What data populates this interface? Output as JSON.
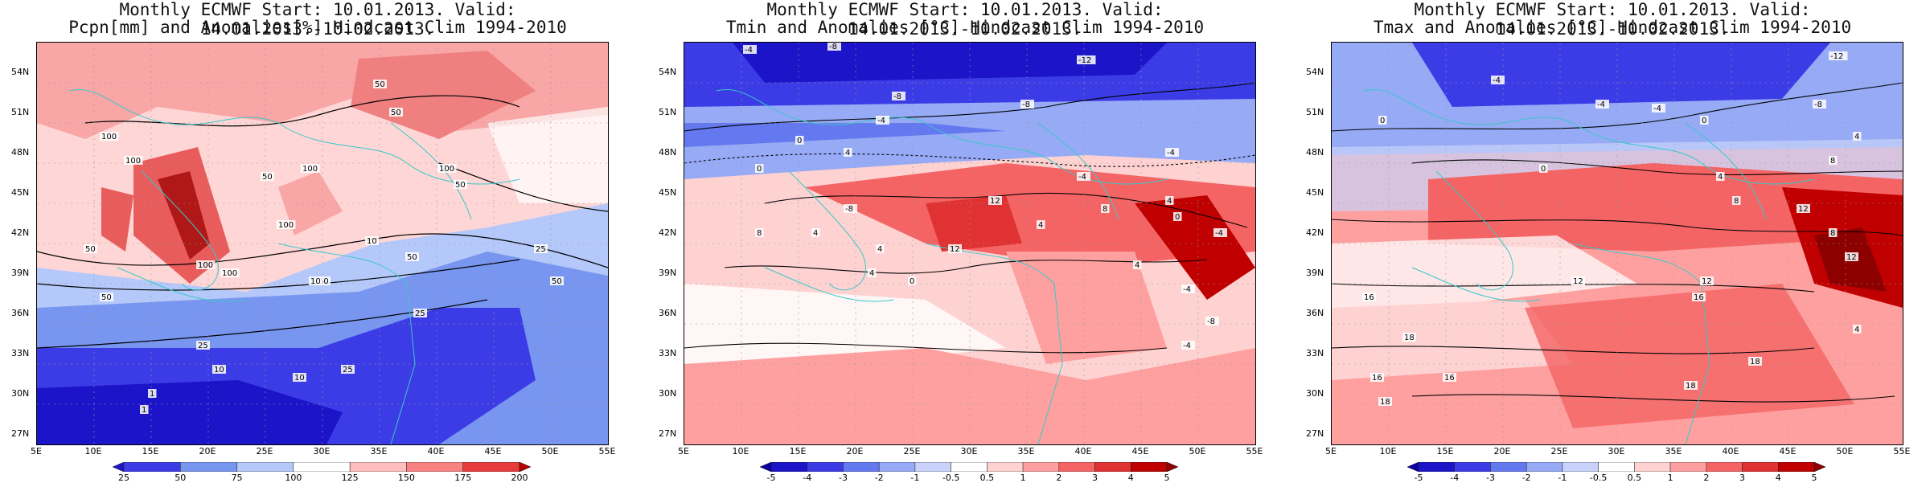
{
  "panels": [
    {
      "id": "pcpn",
      "title_line1": "Monthly ECMWF Start: 10.01.2013. Valid: 14.01.2013.-10.02.2013.",
      "title_line2": "Pcpn[mm] and Anomalies[%] Hindcast Clim 1994-2010",
      "lat_labels": [
        "54N",
        "51N",
        "48N",
        "45N",
        "42N",
        "39N",
        "36N",
        "33N",
        "30N",
        "27N"
      ],
      "lon_labels": [
        "5E",
        "10E",
        "15E",
        "20E",
        "25E",
        "30E",
        "35E",
        "40E",
        "45E",
        "50E",
        "55E"
      ],
      "colorbar_ticks": [
        "25",
        "50",
        "75",
        "100",
        "125",
        "150",
        "175",
        "200"
      ],
      "colorbar_colors": [
        "#1c14c8",
        "#3c3ce6",
        "#7896f0",
        "#b4c8fa",
        "#ffffff",
        "#ffbebe",
        "#f88282",
        "#e63c3c",
        "#b40000"
      ],
      "contour_labels": [
        "50",
        "100",
        "50",
        "100",
        "100",
        "50",
        "100",
        "50",
        "100",
        "50",
        "100",
        "25",
        "50",
        "10",
        "25",
        "10",
        "1",
        "25",
        "10",
        "1",
        "50",
        "100",
        "25",
        "50",
        "50",
        "10"
      ]
    },
    {
      "id": "tmin",
      "title_line1": "Monthly ECMWF Start: 10.01.2013. Valid: 14.01.2013.-10.02.2013.",
      "title_line2": "Tmin and Anomalies [°C] Hindcast Clim 1994-2010",
      "lat_labels": [
        "54N",
        "51N",
        "48N",
        "45N",
        "42N",
        "39N",
        "36N",
        "33N",
        "30N",
        "27N"
      ],
      "lon_labels": [
        "5E",
        "10E",
        "15E",
        "20E",
        "25E",
        "30E",
        "35E",
        "40E",
        "45E",
        "50E",
        "55E"
      ],
      "colorbar_ticks": [
        "-5",
        "-4",
        "-3",
        "-2",
        "-1",
        "-0.5",
        "0.5",
        "1",
        "2",
        "3",
        "4",
        "5"
      ],
      "colorbar_colors": [
        "#0a00a0",
        "#1c14c8",
        "#3c3ce6",
        "#6478f0",
        "#96aaf5",
        "#c8d2fa",
        "#ffffff",
        "#ffd2d2",
        "#ffa0a0",
        "#f56464",
        "#e03232",
        "#c00000",
        "#8c0000"
      ],
      "contour_labels": [
        "-4",
        "-8",
        "-12",
        "-8",
        "-8",
        "-4",
        "0",
        "4",
        "0",
        "-4",
        "-4",
        "-8",
        "8",
        "4",
        "12",
        "4",
        "8",
        "4",
        "0",
        "-4",
        "-8",
        "4",
        "-4",
        "12",
        "4",
        "0",
        "4",
        "-4"
      ]
    },
    {
      "id": "tmax",
      "title_line1": "Monthly ECMWF Start: 10.01.2013. Valid: 14.01.2013.-10.02.2013.",
      "title_line2": "Tmax and Anomalies [°C] Hindcast Clim 1994-2010",
      "lat_labels": [
        "54N",
        "51N",
        "48N",
        "45N",
        "42N",
        "39N",
        "36N",
        "33N",
        "30N",
        "27N"
      ],
      "lon_labels": [
        "5E",
        "10E",
        "15E",
        "20E",
        "25E",
        "30E",
        "35E",
        "40E",
        "45E",
        "50E",
        "55E"
      ],
      "colorbar_ticks": [
        "-5",
        "-4",
        "-3",
        "-2",
        "-1",
        "-0.5",
        "0.5",
        "1",
        "2",
        "3",
        "4",
        "5"
      ],
      "colorbar_colors": [
        "#0a00a0",
        "#1c14c8",
        "#3c3ce6",
        "#6478f0",
        "#96aaf5",
        "#c8d2fa",
        "#ffffff",
        "#ffd2d2",
        "#ffa0a0",
        "#f56464",
        "#e03232",
        "#c00000",
        "#8c0000"
      ],
      "contour_labels": [
        "-12",
        "-8",
        "-4",
        "0",
        "-4",
        "-4",
        "0",
        "4",
        "8",
        "0",
        "4",
        "8",
        "12",
        "8",
        "12",
        "16",
        "12",
        "16",
        "18",
        "16",
        "18",
        "18",
        "18",
        "16",
        "4",
        "12"
      ]
    }
  ]
}
